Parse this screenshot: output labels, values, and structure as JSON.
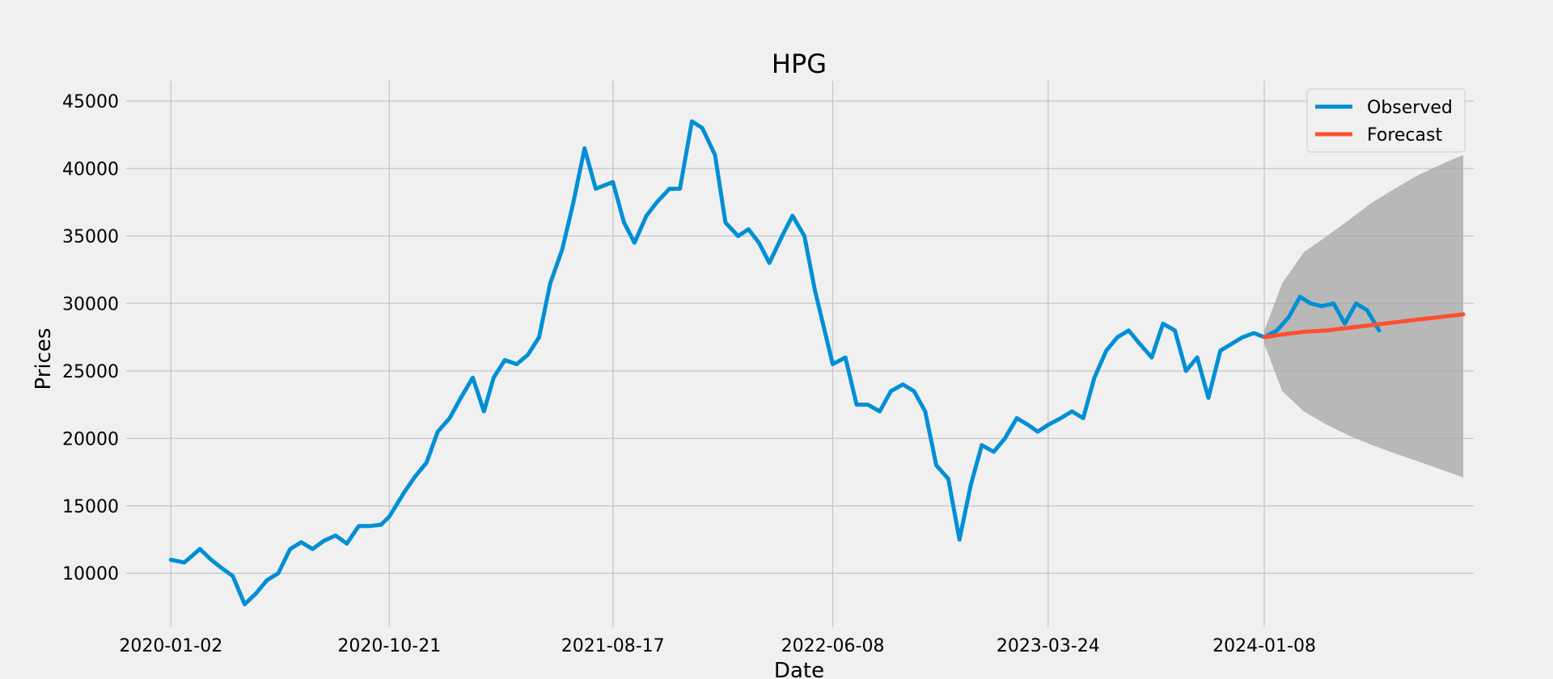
{
  "chart_data": {
    "type": "line",
    "title": "HPG",
    "xlabel": "Date",
    "ylabel": "Prices",
    "ylim": [
      6000,
      46500
    ],
    "xlim": [
      "2019-11-03",
      "2024-10-15"
    ],
    "x_ticks": [
      "2020-01-02",
      "2020-10-21",
      "2021-08-17",
      "2022-06-08",
      "2023-03-24",
      "2024-01-08"
    ],
    "y_ticks": [
      10000,
      15000,
      20000,
      25000,
      30000,
      35000,
      40000,
      45000
    ],
    "grid": true,
    "legend_position": "top-right",
    "colors": {
      "observed": "#008fd5",
      "forecast": "#fc4f30",
      "band": "#a6a6a6",
      "background": "#f0f0f0",
      "grid": "#cbcbcb"
    },
    "series": [
      {
        "name": "Observed",
        "x": [
          "2020-01-02",
          "2020-01-20",
          "2020-02-10",
          "2020-02-25",
          "2020-03-10",
          "2020-03-25",
          "2020-04-10",
          "2020-04-25",
          "2020-05-10",
          "2020-05-25",
          "2020-06-10",
          "2020-06-25",
          "2020-07-10",
          "2020-07-25",
          "2020-08-10",
          "2020-08-25",
          "2020-09-10",
          "2020-09-25",
          "2020-10-10",
          "2020-10-21",
          "2020-11-10",
          "2020-11-25",
          "2020-12-10",
          "2020-12-25",
          "2021-01-10",
          "2021-01-25",
          "2021-02-10",
          "2021-02-25",
          "2021-03-10",
          "2021-03-25",
          "2021-04-10",
          "2021-04-25",
          "2021-05-10",
          "2021-05-25",
          "2021-06-10",
          "2021-06-25",
          "2021-07-10",
          "2021-07-25",
          "2021-08-17",
          "2021-09-01",
          "2021-09-15",
          "2021-10-01",
          "2021-10-15",
          "2021-11-01",
          "2021-11-15",
          "2021-12-01",
          "2021-12-15",
          "2022-01-01",
          "2022-01-15",
          "2022-02-01",
          "2022-02-15",
          "2022-03-01",
          "2022-03-15",
          "2022-04-01",
          "2022-04-15",
          "2022-05-01",
          "2022-05-15",
          "2022-06-08",
          "2022-06-25",
          "2022-07-10",
          "2022-07-25",
          "2022-08-10",
          "2022-08-25",
          "2022-09-10",
          "2022-09-25",
          "2022-10-10",
          "2022-10-25",
          "2022-11-10",
          "2022-11-25",
          "2022-12-10",
          "2022-12-25",
          "2023-01-10",
          "2023-01-25",
          "2023-02-10",
          "2023-02-25",
          "2023-03-10",
          "2023-03-24",
          "2023-04-10",
          "2023-04-25",
          "2023-05-10",
          "2023-05-25",
          "2023-06-10",
          "2023-06-25",
          "2023-07-10",
          "2023-07-25",
          "2023-08-10",
          "2023-08-25",
          "2023-09-10",
          "2023-09-25",
          "2023-10-10",
          "2023-10-25",
          "2023-11-10",
          "2023-11-25",
          "2023-12-10",
          "2023-12-25",
          "2024-01-08",
          "2024-01-25",
          "2024-02-10",
          "2024-02-25",
          "2024-03-10",
          "2024-03-25",
          "2024-04-10",
          "2024-04-25",
          "2024-05-10",
          "2024-05-25",
          "2024-06-10"
        ],
        "y": [
          11000,
          10800,
          11800,
          11000,
          10400,
          9800,
          7700,
          8500,
          9500,
          10000,
          11800,
          12300,
          11800,
          12400,
          12800,
          12200,
          13500,
          13500,
          13600,
          14200,
          16000,
          17200,
          18200,
          20500,
          21500,
          23000,
          24500,
          22000,
          24500,
          25800,
          25500,
          26200,
          27500,
          31500,
          34000,
          37500,
          41500,
          38500,
          39000,
          36000,
          34500,
          36500,
          37500,
          38500,
          38500,
          43500,
          43000,
          41000,
          36000,
          35000,
          35500,
          34500,
          33000,
          35000,
          36500,
          35000,
          31000,
          25500,
          26000,
          22500,
          22500,
          22000,
          23500,
          24000,
          23500,
          22000,
          18000,
          17000,
          12500,
          16500,
          19500,
          19000,
          20000,
          21500,
          21000,
          20500,
          21000,
          21500,
          22000,
          21500,
          24500,
          26500,
          27500,
          28000,
          27000,
          26000,
          28500,
          28000,
          25000,
          26000,
          23000,
          26500,
          27000,
          27500,
          27800,
          27500,
          28000,
          29000,
          30500,
          30000,
          29800,
          30000,
          28500,
          30000,
          29500,
          28000
        ]
      },
      {
        "name": "Forecast",
        "x": [
          "2024-01-08",
          "2024-02-01",
          "2024-03-01",
          "2024-04-01",
          "2024-05-01",
          "2024-06-01",
          "2024-07-01",
          "2024-08-01",
          "2024-09-01",
          "2024-10-01"
        ],
        "y": [
          27500,
          27700,
          27900,
          28000,
          28200,
          28400,
          28600,
          28800,
          29000,
          29200
        ]
      }
    ],
    "confidence_band": {
      "x": [
        "2024-01-08",
        "2024-02-01",
        "2024-03-01",
        "2024-04-01",
        "2024-05-01",
        "2024-06-01",
        "2024-07-01",
        "2024-08-01",
        "2024-09-01",
        "2024-10-01"
      ],
      "lower": [
        27000,
        23500,
        22000,
        21000,
        20200,
        19500,
        18900,
        18300,
        17700,
        17100
      ],
      "upper": [
        28000,
        31500,
        33800,
        35000,
        36200,
        37500,
        38500,
        39500,
        40300,
        41000
      ]
    }
  }
}
